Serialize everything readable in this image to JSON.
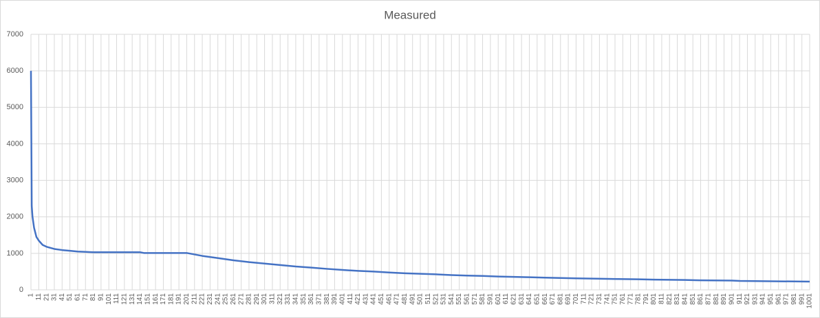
{
  "chart_data": {
    "type": "line",
    "title": "Measured",
    "x": [
      1,
      2,
      3,
      5,
      8,
      11,
      16,
      21,
      31,
      41,
      51,
      61,
      81,
      141,
      146,
      201,
      221,
      241,
      261,
      281,
      301,
      321,
      341,
      361,
      381,
      401,
      421,
      441,
      461,
      481,
      501,
      521,
      541,
      561,
      581,
      601,
      621,
      641,
      661,
      681,
      701,
      741,
      781,
      801,
      841,
      861,
      901,
      911,
      1001
    ],
    "values": [
      6000,
      2300,
      2000,
      1700,
      1450,
      1350,
      1230,
      1180,
      1120,
      1090,
      1070,
      1050,
      1030,
      1030,
      1010,
      1010,
      930,
      870,
      810,
      760,
      720,
      680,
      640,
      610,
      575,
      545,
      520,
      500,
      475,
      455,
      440,
      425,
      405,
      390,
      380,
      365,
      355,
      345,
      335,
      325,
      315,
      300,
      290,
      280,
      270,
      260,
      255,
      245,
      225
    ],
    "color": "#4472c4",
    "xlim": [
      1,
      1001
    ],
    "xticks": [
      1,
      11,
      21,
      31,
      41,
      51,
      61,
      71,
      81,
      91,
      101,
      111,
      121,
      131,
      141,
      151,
      161,
      171,
      181,
      191,
      201,
      211,
      221,
      231,
      241,
      251,
      261,
      271,
      281,
      291,
      301,
      311,
      321,
      331,
      341,
      351,
      361,
      371,
      381,
      391,
      401,
      411,
      421,
      431,
      441,
      451,
      461,
      471,
      481,
      491,
      501,
      511,
      521,
      531,
      541,
      551,
      561,
      571,
      581,
      591,
      601,
      611,
      621,
      631,
      641,
      651,
      661,
      671,
      681,
      691,
      701,
      711,
      721,
      731,
      741,
      751,
      761,
      771,
      781,
      791,
      801,
      811,
      821,
      831,
      841,
      851,
      861,
      871,
      881,
      891,
      901,
      911,
      921,
      931,
      941,
      951,
      961,
      971,
      981,
      991,
      1001
    ],
    "ylim": [
      0,
      7000
    ],
    "yticks": [
      0,
      1000,
      2000,
      3000,
      4000,
      5000,
      6000,
      7000
    ],
    "grid": true
  }
}
